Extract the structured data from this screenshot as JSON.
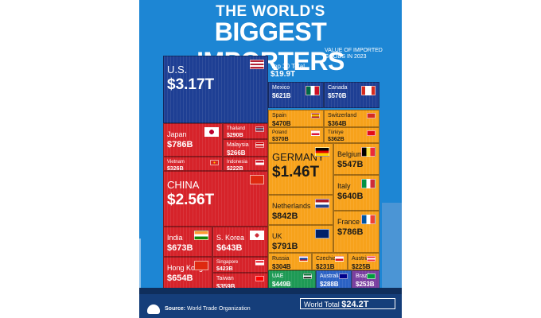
{
  "header": {
    "title_line1": "THE WORLD'S",
    "title_line2": "BIGGEST IMPORTERS",
    "subtitle": "VALUE OF IMPORTED GOODS IN 2023"
  },
  "top30": {
    "label": "Top 30 Total",
    "value": "$19.9T"
  },
  "footer": {
    "source_label": "Source:",
    "source_text": "World Trade Organization",
    "world_label": "World Total",
    "world_value": "$24.2T"
  },
  "colors": {
    "background": "#1d86d4",
    "us": "#1e3f94",
    "asia": "#d6232a",
    "europe": "#f7a21b",
    "uae": "#1e9a55",
    "australia": "#2b62c4",
    "brazil": "#7a3fa0"
  },
  "chart_data": {
    "type": "treemap",
    "title": "THE WORLD'S BIGGEST IMPORTERS",
    "unit": "USD (value of imported goods in 2023)",
    "items": [
      {
        "name": "U.S.",
        "label": "$3.17T",
        "value": 3170,
        "group": "americas"
      },
      {
        "name": "Mexico",
        "label": "$621B",
        "value": 621,
        "group": "americas"
      },
      {
        "name": "Canada",
        "label": "$570B",
        "value": 570,
        "group": "americas"
      },
      {
        "name": "Japan",
        "label": "$786B",
        "value": 786,
        "group": "asia"
      },
      {
        "name": "Thailand",
        "label": "$290B",
        "value": 290,
        "group": "asia"
      },
      {
        "name": "Malaysia",
        "label": "$266B",
        "value": 266,
        "group": "asia"
      },
      {
        "name": "Vietnam",
        "label": "$326B",
        "value": 326,
        "group": "asia"
      },
      {
        "name": "Indonesia",
        "label": "$222B",
        "value": 222,
        "group": "asia"
      },
      {
        "name": "CHINA",
        "label": "$2.56T",
        "value": 2560,
        "group": "asia"
      },
      {
        "name": "India",
        "label": "$673B",
        "value": 673,
        "group": "asia"
      },
      {
        "name": "S. Korea",
        "label": "$643B",
        "value": 643,
        "group": "asia"
      },
      {
        "name": "Singapore",
        "label": "$423B",
        "value": 423,
        "group": "asia"
      },
      {
        "name": "Hong Kong",
        "label": "$654B",
        "value": 654,
        "group": "asia"
      },
      {
        "name": "Taiwan",
        "label": "$359B",
        "value": 359,
        "group": "asia"
      },
      {
        "name": "Spain",
        "label": "$470B",
        "value": 470,
        "group": "europe"
      },
      {
        "name": "Switzerland",
        "label": "$364B",
        "value": 364,
        "group": "europe"
      },
      {
        "name": "Poland",
        "label": "$370B",
        "value": 370,
        "group": "europe"
      },
      {
        "name": "Türkiye",
        "label": "$362B",
        "value": 362,
        "group": "europe"
      },
      {
        "name": "GERMANY",
        "label": "$1.46T",
        "value": 1460,
        "group": "europe"
      },
      {
        "name": "Belgium",
        "label": "$547B",
        "value": 547,
        "group": "europe"
      },
      {
        "name": "Italy",
        "label": "$640B",
        "value": 640,
        "group": "europe"
      },
      {
        "name": "Netherlands",
        "label": "$842B",
        "value": 842,
        "group": "europe"
      },
      {
        "name": "UK",
        "label": "$791B",
        "value": 791,
        "group": "europe"
      },
      {
        "name": "France",
        "label": "$786B",
        "value": 786,
        "group": "europe"
      },
      {
        "name": "Russia",
        "label": "$304B",
        "value": 304,
        "group": "europe"
      },
      {
        "name": "Czechia",
        "label": "$231B",
        "value": 231,
        "group": "europe"
      },
      {
        "name": "Austria",
        "label": "$225B",
        "value": 225,
        "group": "europe"
      },
      {
        "name": "UAE",
        "label": "$449B",
        "value": 449,
        "group": "other"
      },
      {
        "name": "Australia",
        "label": "$288B",
        "value": 288,
        "group": "other"
      },
      {
        "name": "Brazil",
        "label": "$253B",
        "value": 253,
        "group": "other"
      }
    ]
  }
}
